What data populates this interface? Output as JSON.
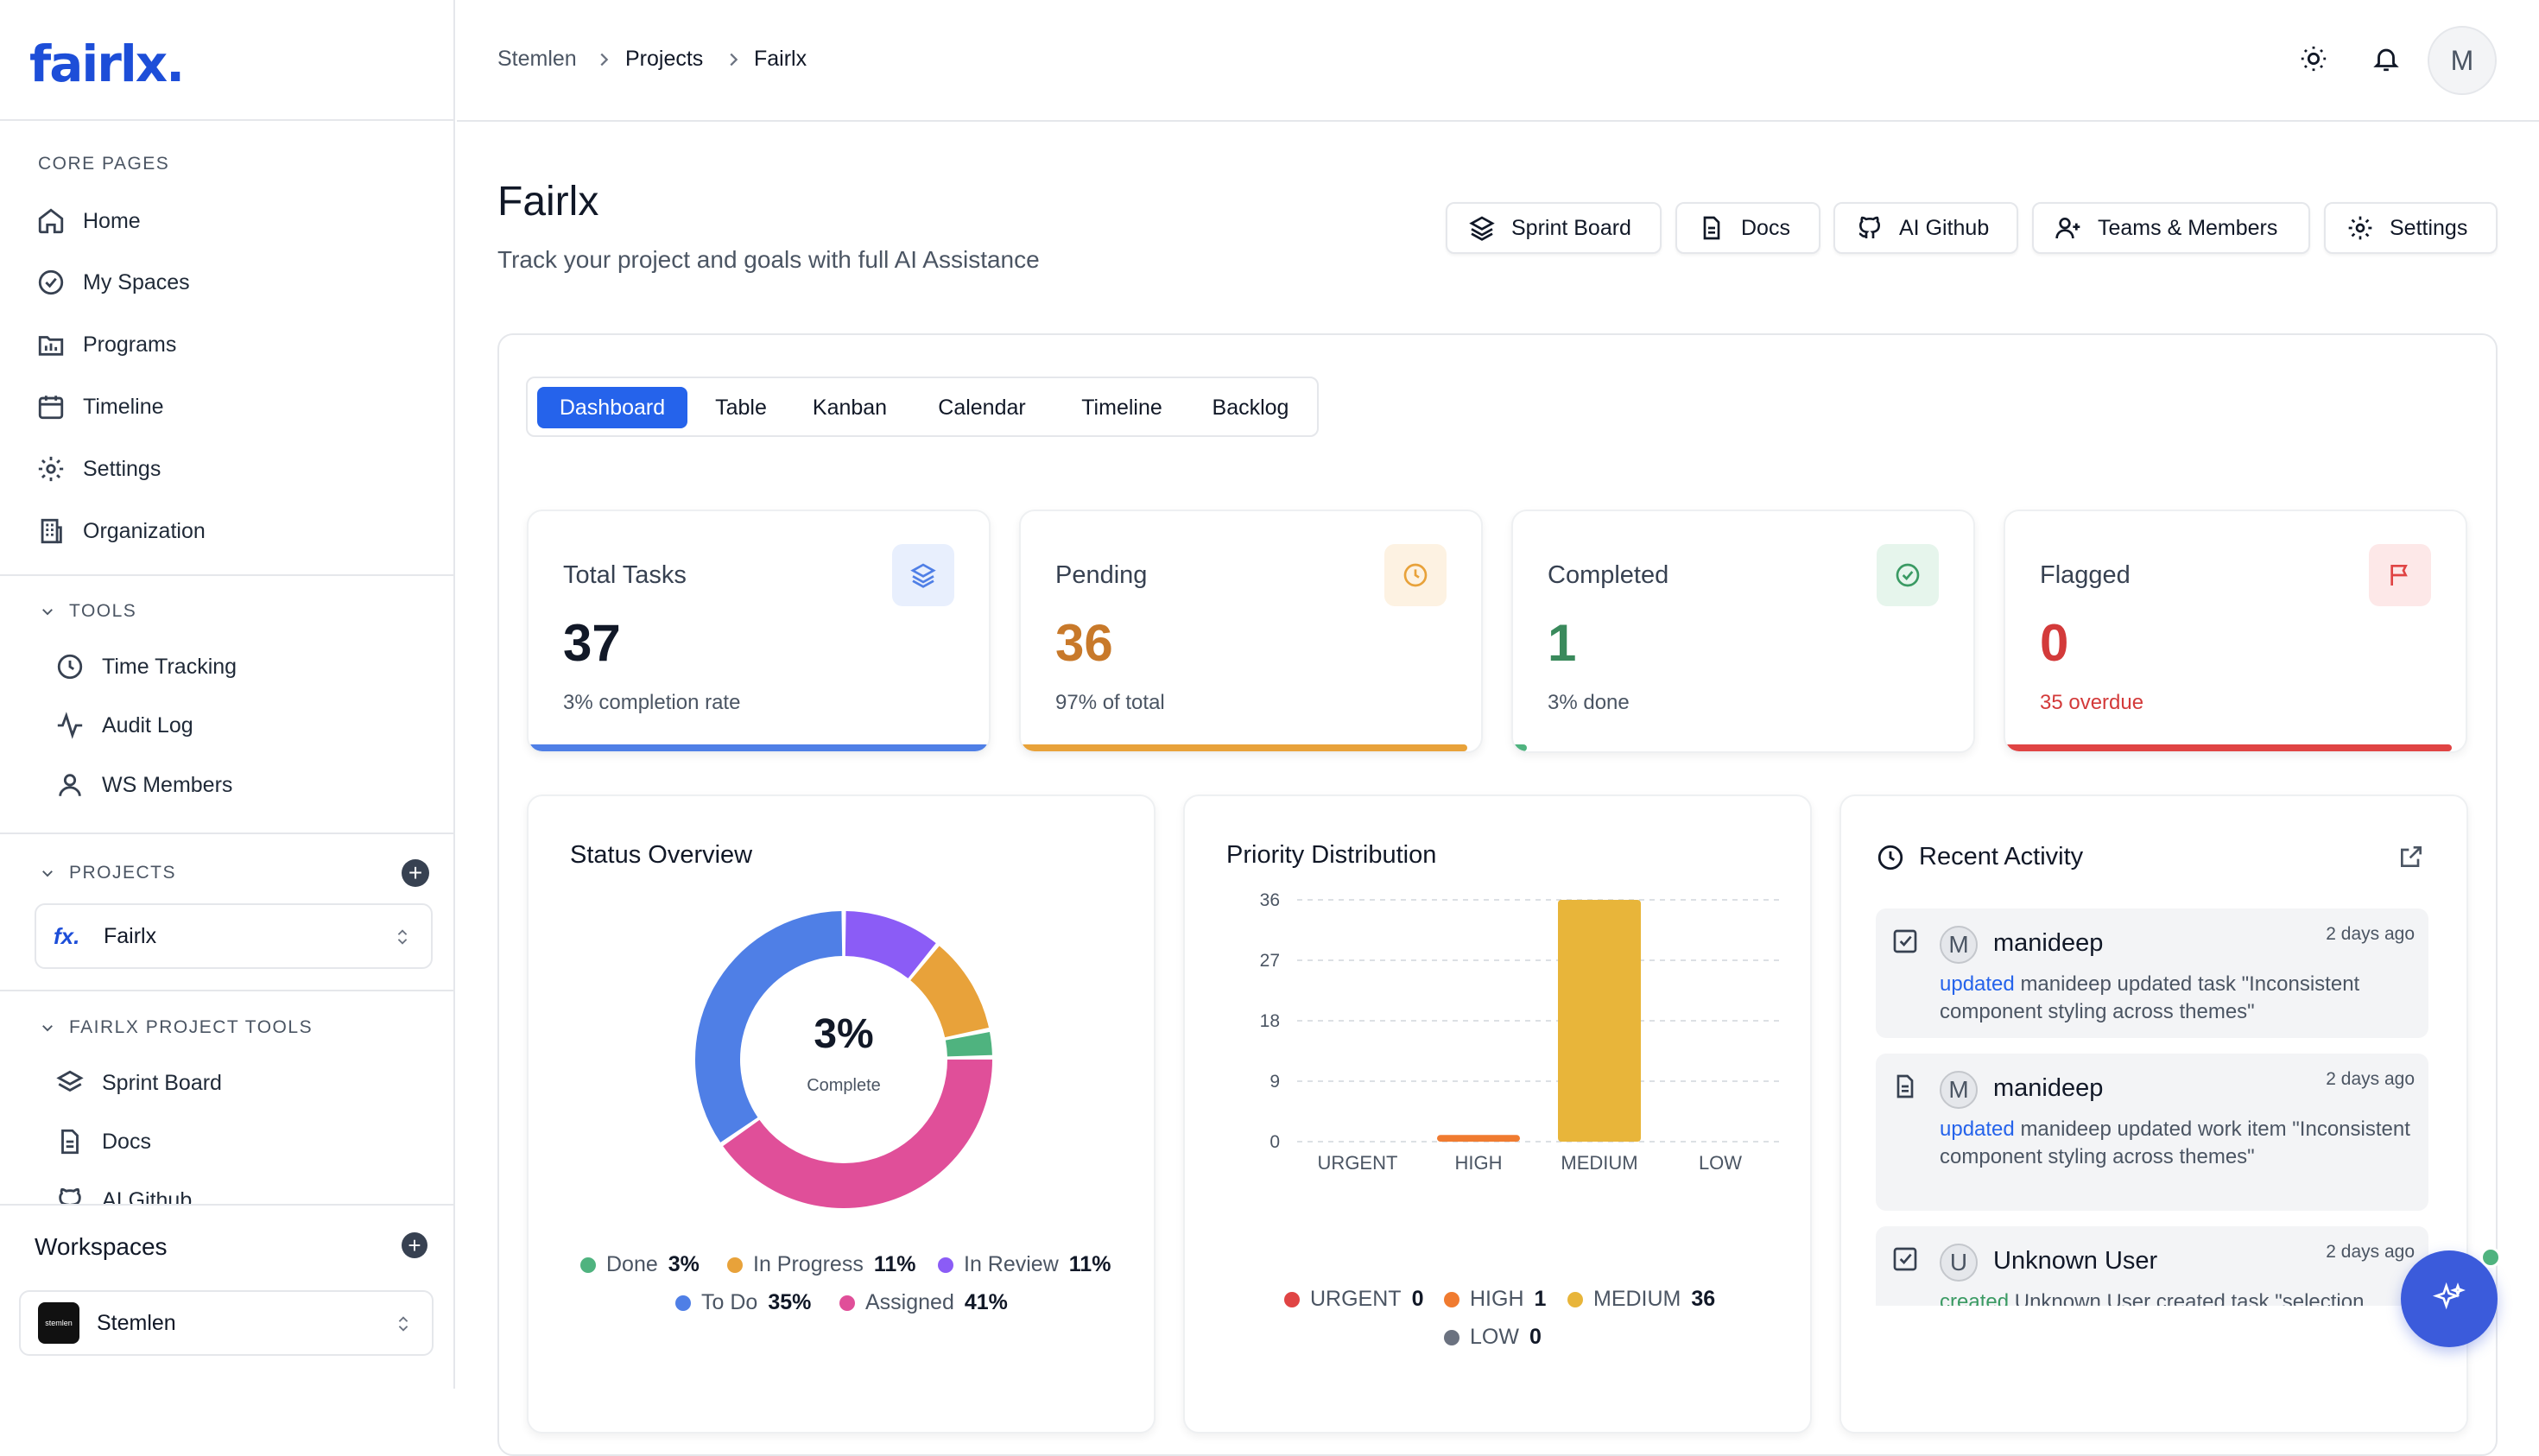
{
  "app": {
    "logo": "fairlx."
  },
  "sidebar": {
    "core_label": "CORE PAGES",
    "core_items": [
      {
        "label": "Home",
        "icon": "home-icon"
      },
      {
        "label": "My Spaces",
        "icon": "check-circle-icon"
      },
      {
        "label": "Programs",
        "icon": "folder-chart-icon"
      },
      {
        "label": "Timeline",
        "icon": "calendar-icon"
      },
      {
        "label": "Settings",
        "icon": "gear-icon"
      },
      {
        "label": "Organization",
        "icon": "building-icon"
      }
    ],
    "tools_label": "TOOLS",
    "tools_items": [
      {
        "label": "Time Tracking",
        "icon": "clock-icon"
      },
      {
        "label": "Audit Log",
        "icon": "activity-icon"
      },
      {
        "label": "WS Members",
        "icon": "user-icon"
      }
    ],
    "projects_label": "PROJECTS",
    "project_selected": {
      "mark": "fx.",
      "name": "Fairlx"
    },
    "project_tools_label": "FAIRLX PROJECT TOOLS",
    "project_tools_items": [
      {
        "label": "Sprint Board",
        "icon": "layers-icon"
      },
      {
        "label": "Docs",
        "icon": "document-icon"
      },
      {
        "label": "AI Github",
        "icon": "github-icon"
      }
    ],
    "workspaces_label": "Workspaces",
    "workspace_selected": {
      "mark": "stemlen",
      "name": "Stemlen"
    }
  },
  "breadcrumb": {
    "items": [
      "Stemlen",
      "Projects",
      "Fairlx"
    ]
  },
  "header": {
    "avatar": "M"
  },
  "page": {
    "title": "Fairlx",
    "subtitle": "Track your project and goals with full AI Assistance",
    "actions": [
      "Sprint Board",
      "Docs",
      "AI Github",
      "Teams & Members",
      "Settings"
    ]
  },
  "tabs": [
    "Dashboard",
    "Table",
    "Kanban",
    "Calendar",
    "Timeline",
    "Backlog"
  ],
  "active_tab": "Dashboard",
  "stats": [
    {
      "label": "Total Tasks",
      "value": "37",
      "sub": "3% completion rate",
      "color": "#111827",
      "accent": "#4f7fe6",
      "icon": "layers-icon",
      "progress": 1.0
    },
    {
      "label": "Pending",
      "value": "36",
      "sub": "97% of total",
      "color": "#c8792a",
      "accent": "#e8a23a",
      "icon": "clock-icon",
      "progress": 0.97
    },
    {
      "label": "Completed",
      "value": "1",
      "sub": "3% done",
      "color": "#3a8a5c",
      "accent": "#4fb37f",
      "icon": "check-circle-icon",
      "progress": 0.03
    },
    {
      "label": "Flagged",
      "value": "0",
      "sub": "35 overdue",
      "color": "#d33a3a",
      "accent": "#e04444",
      "icon": "flag-icon",
      "progress": 0.97
    }
  ],
  "status_overview": {
    "title": "Status Overview",
    "center_value": "3%",
    "center_label": "Complete",
    "legend": [
      {
        "label": "Done",
        "value": "3%",
        "color": "#4fb37f"
      },
      {
        "label": "In Progress",
        "value": "11%",
        "color": "#e8a23a"
      },
      {
        "label": "In Review",
        "value": "11%",
        "color": "#8b5cf6"
      },
      {
        "label": "To Do",
        "value": "35%",
        "color": "#4f7fe6"
      },
      {
        "label": "Assigned",
        "value": "41%",
        "color": "#e04f99"
      }
    ]
  },
  "priority": {
    "title": "Priority Distribution",
    "legend": [
      {
        "label": "URGENT",
        "value": "0",
        "color": "#e04444"
      },
      {
        "label": "HIGH",
        "value": "1",
        "color": "#f07b30"
      },
      {
        "label": "MEDIUM",
        "value": "36",
        "color": "#e8b53a"
      },
      {
        "label": "LOW",
        "value": "0",
        "color": "#6b7280"
      }
    ]
  },
  "chart_data": {
    "type": "bar",
    "categories": [
      "URGENT",
      "HIGH",
      "MEDIUM",
      "LOW"
    ],
    "values": [
      0,
      1,
      36,
      0
    ],
    "colors": [
      "#e04444",
      "#f07b30",
      "#e8b53a",
      "#6b7280"
    ],
    "yticks": [
      "0",
      "9",
      "18",
      "27",
      "36"
    ],
    "ylim": [
      0,
      36
    ],
    "grid": true
  },
  "activity": {
    "title": "Recent Activity",
    "items": [
      {
        "avatar": "M",
        "name": "manideep",
        "time": "2 days ago",
        "action": "updated",
        "text": "manideep updated task \"Inconsistent component styling across themes\""
      },
      {
        "avatar": "M",
        "name": "manideep",
        "time": "2 days ago",
        "action": "updated",
        "text": "manideep updated work item \"Inconsistent component styling across themes\""
      },
      {
        "avatar": "U",
        "name": "Unknown User",
        "time": "2 days ago",
        "action": "created",
        "text": "Unknown User created task \"selection"
      }
    ]
  }
}
